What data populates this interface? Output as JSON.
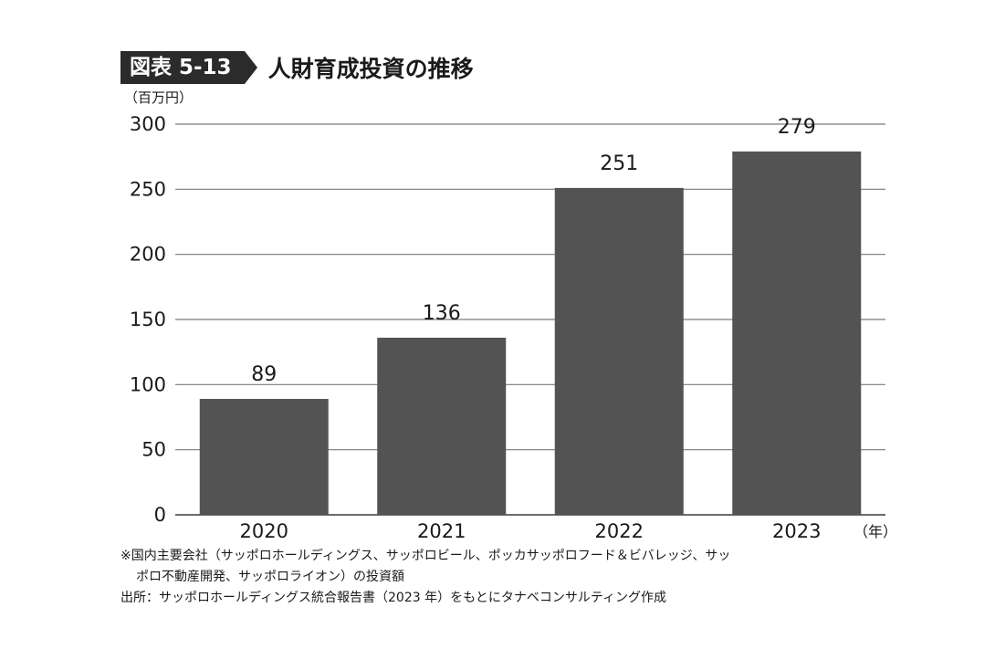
{
  "figure": {
    "badge": "図表 5-13",
    "title": "人財育成投資の推移"
  },
  "chart_data": {
    "type": "bar",
    "ylabel": "（百万円）",
    "xlabel": "（年）",
    "categories": [
      "2020",
      "2021",
      "2022",
      "2023"
    ],
    "values": [
      89,
      136,
      251,
      279
    ],
    "data_labels": [
      "89",
      "136",
      "251",
      "279"
    ],
    "ylim": [
      0,
      300
    ],
    "yticks": [
      0,
      50,
      100,
      150,
      200,
      250,
      300
    ],
    "ytick_labels": [
      "0",
      "50",
      "100",
      "150",
      "200",
      "250",
      "300"
    ],
    "grid": true,
    "colors": {
      "bar": "#545353",
      "grid": "#7a7a7a",
      "axis": "#3a3a3a",
      "text": "#1a1a1a"
    }
  },
  "notes": {
    "line1": "※国内主要会社（サッポロホールディングス、サッポロビール、ポッカサッポロフード＆ビバレッジ、サッ",
    "line2": "ポロ不動産開発、サッポロライオン）の投資額",
    "source": "出所：サッポロホールディングス統合報告書（2023 年）をもとにタナベコンサルティング作成"
  }
}
